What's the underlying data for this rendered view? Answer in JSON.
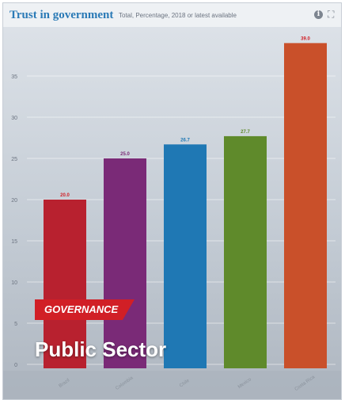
{
  "header": {
    "title": "Trust in government",
    "subtitle": "Total, Percentage, 2018 or latest available",
    "info_icon": "info-icon",
    "expand_icon": "expand-icon"
  },
  "overlay": {
    "badge": "GOVERNANCE",
    "label": "Public Sector"
  },
  "colors": {
    "brazil": "#b8212f",
    "colombia": "#7a2a77",
    "chile": "#1f78b4",
    "mexico": "#5f8a2b",
    "costa_rica": "#c9502a",
    "badge": "#d11f26"
  },
  "chart_data": {
    "type": "bar",
    "title": "Trust in government",
    "subtitle": "Total, Percentage, 2018 or latest available",
    "categories": [
      "Brazil",
      "Colombia",
      "Chile",
      "Mexico",
      "Costa Rica"
    ],
    "values": [
      20.0,
      25.0,
      26.7,
      27.7,
      39.0
    ],
    "data_labels": [
      "20.0",
      "25.0",
      "26.7",
      "27.7",
      "39.0"
    ],
    "bar_colors": [
      "#b8212f",
      "#7a2a77",
      "#1f78b4",
      "#5f8a2b",
      "#c9502a"
    ],
    "label_colors": [
      "#d11f26",
      "#7a2a77",
      "#1f78b4",
      "#5f8a2b",
      "#d11f26"
    ],
    "y_ticks": [
      0,
      5,
      10,
      15,
      20,
      25,
      30,
      35
    ],
    "ylim": [
      0,
      40
    ],
    "grid": true,
    "xlabel": "",
    "ylabel": ""
  }
}
